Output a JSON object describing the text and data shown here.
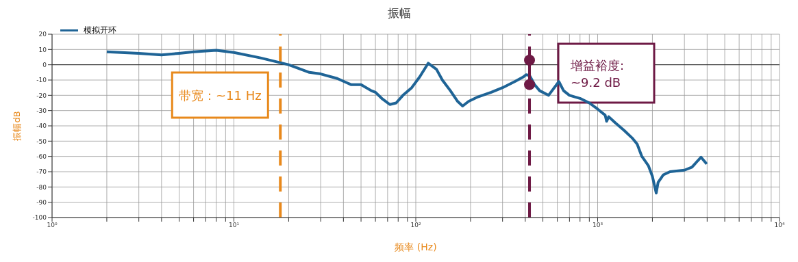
{
  "chart_data": {
    "type": "line",
    "title": "振幅",
    "xlabel": "频率 (Hz)",
    "ylabel": "振幅dB",
    "log": "x",
    "grid": true,
    "legend": "top left",
    "line_style": "solid",
    "marker": "none",
    "x": [
      2,
      3,
      4,
      5,
      6,
      8,
      10,
      14,
      20,
      26,
      30,
      37,
      44,
      50,
      57,
      60,
      65,
      72,
      78,
      85,
      95,
      105,
      117,
      130,
      140,
      155,
      170,
      181,
      195,
      220,
      260,
      300,
      350,
      390,
      404,
      422,
      450,
      480,
      537,
      612,
      650,
      700,
      800,
      900,
      1000,
      1100,
      1120,
      1150,
      1250,
      1400,
      1550,
      1650,
      1750,
      1800,
      1900,
      2000,
      2100,
      2150,
      2300,
      2500,
      3000,
      3300,
      3700,
      3980
    ],
    "series": [
      {
        "name": "模拟开环",
        "color": "#1f6496",
        "values": [
          8.5,
          7.5,
          6.5,
          7.5,
          8.5,
          9.5,
          8,
          4.5,
          0,
          -5,
          -6,
          -9,
          -13,
          -13,
          -17,
          -18,
          -22,
          -26,
          -25,
          -20,
          -15,
          -8,
          1,
          -3,
          -10,
          -17,
          -24,
          -27,
          -24,
          -21,
          -18,
          -15,
          -11,
          -8,
          -6.5,
          -7,
          -13,
          -17,
          -20,
          -11,
          -17,
          -20,
          -22,
          -25,
          -29,
          -33,
          -37,
          -34,
          -38,
          -43,
          -48,
          -52,
          -60,
          -62,
          -66,
          -73,
          -84,
          -77,
          -72,
          -70,
          -69,
          -67,
          -60.5,
          -65
        ]
      },
      {
        "color": "#6e1a45",
        "x": [
          422,
          422
        ],
        "values": [
          3,
          -13
        ],
        "marker": "circle"
      }
    ],
    "xlim": [
      1,
      10000
    ],
    "xticks": [
      {
        "value": 1,
        "label": "10⁰"
      },
      {
        "value": 2,
        "label": null
      },
      {
        "value": 3,
        "label": null
      },
      {
        "value": 4,
        "label": null
      },
      {
        "value": 5,
        "label": null
      },
      {
        "value": 6,
        "label": null
      },
      {
        "value": 7,
        "label": null
      },
      {
        "value": 8,
        "label": null
      },
      {
        "value": 9,
        "label": null
      },
      {
        "value": 10,
        "label": "10¹"
      },
      {
        "value": 20,
        "label": null
      },
      {
        "value": 30,
        "label": null
      },
      {
        "value": 40,
        "label": null
      },
      {
        "value": 50,
        "label": null
      },
      {
        "value": 60,
        "label": null
      },
      {
        "value": 70,
        "label": null
      },
      {
        "value": 80,
        "label": null
      },
      {
        "value": 90,
        "label": null
      },
      {
        "value": 100,
        "label": "10²"
      },
      {
        "value": 200,
        "label": null
      },
      {
        "value": 300,
        "label": null
      },
      {
        "value": 400,
        "label": null
      },
      {
        "value": 500,
        "label": null
      },
      {
        "value": 600,
        "label": null
      },
      {
        "value": 700,
        "label": null
      },
      {
        "value": 800,
        "label": null
      },
      {
        "value": 900,
        "label": null
      },
      {
        "value": 1000,
        "label": "10³"
      },
      {
        "value": 2000,
        "label": null
      },
      {
        "value": 3000,
        "label": null
      },
      {
        "value": 4000,
        "label": null
      },
      {
        "value": 5000,
        "label": null
      },
      {
        "value": 6000,
        "label": null
      },
      {
        "value": 7000,
        "label": null
      },
      {
        "value": 8000,
        "label": null
      },
      {
        "value": 9000,
        "label": null
      },
      {
        "value": 10000,
        "label": "10⁴"
      }
    ],
    "ylim": [
      -100,
      20
    ],
    "yticks": [
      -100,
      -90,
      -80,
      -70,
      -60,
      -50,
      -40,
      -30,
      -20,
      -10,
      0,
      10,
      20
    ],
    "ref_lines": [
      {
        "axis": "x",
        "value": 18,
        "label": "带宽：~11 Hz",
        "color": "#e8891c",
        "line_style": "dashed"
      },
      {
        "axis": "x",
        "value": 422,
        "label": "增益裕度:\n~9.2 dB",
        "color": "#6e1a45",
        "line_style": "dashed"
      }
    ]
  }
}
